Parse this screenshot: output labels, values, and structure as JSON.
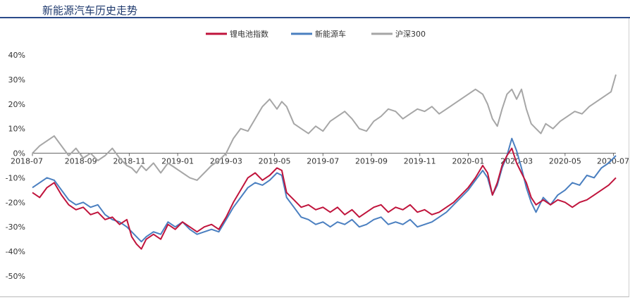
{
  "header": {
    "title": "新能源汽车历史走势"
  },
  "chart_data": {
    "type": "line",
    "title": "新能源汽车历史走势",
    "ylim": [
      -50,
      40
    ],
    "yticks": [
      "40%",
      "30%",
      "20%",
      "10%",
      "0%",
      "-10%",
      "-20%",
      "-30%",
      "-40%",
      "-50%"
    ],
    "ytick_values": [
      40,
      30,
      20,
      10,
      0,
      -10,
      -20,
      -30,
      -40,
      -50
    ],
    "x_ticks": [
      "2018-07",
      "2018-09",
      "2018-11",
      "2019-01",
      "2019-03",
      "2019-05",
      "2019-07",
      "2019-09",
      "2019-11",
      "2020-01",
      "2020-03",
      "2020-05",
      "2020-07"
    ],
    "x_tick_months": [
      0,
      2,
      4,
      6,
      8,
      10,
      12,
      14,
      16,
      18,
      20,
      22,
      24
    ],
    "xlim_months": [
      0,
      24.1
    ],
    "legend_position": "top-center",
    "grid": false,
    "series": [
      {
        "name": "锂电池指数",
        "color": "#c0143c",
        "points": [
          [
            0,
            -16
          ],
          [
            0.3,
            -18
          ],
          [
            0.6,
            -14
          ],
          [
            0.9,
            -12
          ],
          [
            1.2,
            -17
          ],
          [
            1.5,
            -21
          ],
          [
            1.8,
            -23
          ],
          [
            2.1,
            -22
          ],
          [
            2.4,
            -25
          ],
          [
            2.7,
            -24
          ],
          [
            3.0,
            -27
          ],
          [
            3.3,
            -26
          ],
          [
            3.6,
            -29
          ],
          [
            3.9,
            -27
          ],
          [
            4.1,
            -34
          ],
          [
            4.3,
            -37
          ],
          [
            4.5,
            -39
          ],
          [
            4.7,
            -35
          ],
          [
            5.0,
            -33
          ],
          [
            5.3,
            -35
          ],
          [
            5.6,
            -29
          ],
          [
            5.9,
            -31
          ],
          [
            6.2,
            -28
          ],
          [
            6.5,
            -30
          ],
          [
            6.8,
            -32
          ],
          [
            7.1,
            -30
          ],
          [
            7.4,
            -29
          ],
          [
            7.7,
            -31
          ],
          [
            8.0,
            -26
          ],
          [
            8.3,
            -20
          ],
          [
            8.6,
            -15
          ],
          [
            8.9,
            -10
          ],
          [
            9.2,
            -8
          ],
          [
            9.5,
            -11
          ],
          [
            9.8,
            -9
          ],
          [
            10.1,
            -6
          ],
          [
            10.3,
            -7
          ],
          [
            10.5,
            -16
          ],
          [
            10.8,
            -19
          ],
          [
            11.1,
            -22
          ],
          [
            11.4,
            -21
          ],
          [
            11.7,
            -23
          ],
          [
            12.0,
            -22
          ],
          [
            12.3,
            -24
          ],
          [
            12.6,
            -22
          ],
          [
            12.9,
            -25
          ],
          [
            13.2,
            -23
          ],
          [
            13.5,
            -26
          ],
          [
            13.8,
            -24
          ],
          [
            14.1,
            -22
          ],
          [
            14.4,
            -21
          ],
          [
            14.7,
            -24
          ],
          [
            15.0,
            -22
          ],
          [
            15.3,
            -23
          ],
          [
            15.6,
            -21
          ],
          [
            15.9,
            -24
          ],
          [
            16.2,
            -23
          ],
          [
            16.5,
            -25
          ],
          [
            16.8,
            -24
          ],
          [
            17.1,
            -22
          ],
          [
            17.4,
            -20
          ],
          [
            17.7,
            -17
          ],
          [
            18.0,
            -14
          ],
          [
            18.3,
            -10
          ],
          [
            18.6,
            -5
          ],
          [
            18.8,
            -8
          ],
          [
            19.0,
            -17
          ],
          [
            19.2,
            -12
          ],
          [
            19.4,
            -5
          ],
          [
            19.6,
            -1
          ],
          [
            19.8,
            2
          ],
          [
            20.0,
            -4
          ],
          [
            20.2,
            -8
          ],
          [
            20.4,
            -12
          ],
          [
            20.6,
            -18
          ],
          [
            20.8,
            -21
          ],
          [
            21.1,
            -19
          ],
          [
            21.4,
            -21
          ],
          [
            21.7,
            -19
          ],
          [
            22.0,
            -20
          ],
          [
            22.3,
            -22
          ],
          [
            22.6,
            -20
          ],
          [
            22.9,
            -19
          ],
          [
            23.2,
            -17
          ],
          [
            23.5,
            -15
          ],
          [
            23.8,
            -13
          ],
          [
            24.0,
            -11
          ],
          [
            24.1,
            -10
          ]
        ]
      },
      {
        "name": "新能源车",
        "color": "#4a7fc0",
        "points": [
          [
            0,
            -14
          ],
          [
            0.3,
            -12
          ],
          [
            0.6,
            -10
          ],
          [
            0.9,
            -11
          ],
          [
            1.2,
            -15
          ],
          [
            1.5,
            -19
          ],
          [
            1.8,
            -21
          ],
          [
            2.1,
            -20
          ],
          [
            2.4,
            -22
          ],
          [
            2.7,
            -21
          ],
          [
            3.0,
            -25
          ],
          [
            3.3,
            -27
          ],
          [
            3.6,
            -28
          ],
          [
            3.9,
            -30
          ],
          [
            4.1,
            -32
          ],
          [
            4.3,
            -34
          ],
          [
            4.5,
            -36
          ],
          [
            4.7,
            -34
          ],
          [
            5.0,
            -32
          ],
          [
            5.3,
            -33
          ],
          [
            5.6,
            -28
          ],
          [
            5.9,
            -30
          ],
          [
            6.2,
            -28
          ],
          [
            6.5,
            -31
          ],
          [
            6.8,
            -33
          ],
          [
            7.1,
            -32
          ],
          [
            7.4,
            -31
          ],
          [
            7.7,
            -32
          ],
          [
            8.0,
            -27
          ],
          [
            8.3,
            -22
          ],
          [
            8.6,
            -18
          ],
          [
            8.9,
            -14
          ],
          [
            9.2,
            -12
          ],
          [
            9.5,
            -13
          ],
          [
            9.8,
            -11
          ],
          [
            10.1,
            -8
          ],
          [
            10.3,
            -9
          ],
          [
            10.5,
            -18
          ],
          [
            10.8,
            -22
          ],
          [
            11.1,
            -26
          ],
          [
            11.4,
            -27
          ],
          [
            11.7,
            -29
          ],
          [
            12.0,
            -28
          ],
          [
            12.3,
            -30
          ],
          [
            12.6,
            -28
          ],
          [
            12.9,
            -29
          ],
          [
            13.2,
            -27
          ],
          [
            13.5,
            -30
          ],
          [
            13.8,
            -29
          ],
          [
            14.1,
            -27
          ],
          [
            14.4,
            -26
          ],
          [
            14.7,
            -29
          ],
          [
            15.0,
            -28
          ],
          [
            15.3,
            -29
          ],
          [
            15.6,
            -27
          ],
          [
            15.9,
            -30
          ],
          [
            16.2,
            -29
          ],
          [
            16.5,
            -28
          ],
          [
            16.8,
            -26
          ],
          [
            17.1,
            -24
          ],
          [
            17.4,
            -21
          ],
          [
            17.7,
            -18
          ],
          [
            18.0,
            -15
          ],
          [
            18.3,
            -11
          ],
          [
            18.6,
            -7
          ],
          [
            18.8,
            -10
          ],
          [
            19.0,
            -17
          ],
          [
            19.2,
            -13
          ],
          [
            19.4,
            -6
          ],
          [
            19.6,
            -1
          ],
          [
            19.8,
            6
          ],
          [
            20.0,
            1
          ],
          [
            20.2,
            -6
          ],
          [
            20.4,
            -14
          ],
          [
            20.6,
            -20
          ],
          [
            20.8,
            -24
          ],
          [
            21.1,
            -18
          ],
          [
            21.4,
            -21
          ],
          [
            21.7,
            -17
          ],
          [
            22.0,
            -15
          ],
          [
            22.3,
            -12
          ],
          [
            22.6,
            -13
          ],
          [
            22.9,
            -9
          ],
          [
            23.2,
            -10
          ],
          [
            23.5,
            -6
          ],
          [
            23.8,
            -4
          ],
          [
            24.0,
            -2
          ],
          [
            24.1,
            -1
          ]
        ]
      },
      {
        "name": "沪深300",
        "color": "#a6a6a6",
        "points": [
          [
            0,
            0
          ],
          [
            0.3,
            3
          ],
          [
            0.6,
            5
          ],
          [
            0.9,
            7
          ],
          [
            1.2,
            3
          ],
          [
            1.5,
            -1
          ],
          [
            1.8,
            2
          ],
          [
            2.1,
            -2
          ],
          [
            2.4,
            0
          ],
          [
            2.7,
            -3
          ],
          [
            3.0,
            -1
          ],
          [
            3.3,
            2
          ],
          [
            3.6,
            -2
          ],
          [
            3.9,
            -5
          ],
          [
            4.1,
            -6
          ],
          [
            4.3,
            -8
          ],
          [
            4.5,
            -5
          ],
          [
            4.7,
            -7
          ],
          [
            5.0,
            -4
          ],
          [
            5.3,
            -8
          ],
          [
            5.6,
            -4
          ],
          [
            5.9,
            -6
          ],
          [
            6.2,
            -8
          ],
          [
            6.5,
            -10
          ],
          [
            6.8,
            -11
          ],
          [
            7.1,
            -8
          ],
          [
            7.4,
            -5
          ],
          [
            7.7,
            -3
          ],
          [
            8.0,
            0
          ],
          [
            8.3,
            6
          ],
          [
            8.6,
            10
          ],
          [
            8.9,
            9
          ],
          [
            9.2,
            14
          ],
          [
            9.5,
            19
          ],
          [
            9.8,
            22
          ],
          [
            10.1,
            18
          ],
          [
            10.3,
            21
          ],
          [
            10.5,
            19
          ],
          [
            10.8,
            12
          ],
          [
            11.1,
            10
          ],
          [
            11.4,
            8
          ],
          [
            11.7,
            11
          ],
          [
            12.0,
            9
          ],
          [
            12.3,
            13
          ],
          [
            12.6,
            15
          ],
          [
            12.9,
            17
          ],
          [
            13.2,
            14
          ],
          [
            13.5,
            10
          ],
          [
            13.8,
            9
          ],
          [
            14.1,
            13
          ],
          [
            14.4,
            15
          ],
          [
            14.7,
            18
          ],
          [
            15.0,
            17
          ],
          [
            15.3,
            14
          ],
          [
            15.6,
            16
          ],
          [
            15.9,
            18
          ],
          [
            16.2,
            17
          ],
          [
            16.5,
            19
          ],
          [
            16.8,
            16
          ],
          [
            17.1,
            18
          ],
          [
            17.4,
            20
          ],
          [
            17.7,
            22
          ],
          [
            18.0,
            24
          ],
          [
            18.3,
            26
          ],
          [
            18.6,
            24
          ],
          [
            18.8,
            20
          ],
          [
            19.0,
            14
          ],
          [
            19.2,
            11
          ],
          [
            19.4,
            18
          ],
          [
            19.6,
            24
          ],
          [
            19.8,
            26
          ],
          [
            20.0,
            22
          ],
          [
            20.2,
            26
          ],
          [
            20.4,
            18
          ],
          [
            20.6,
            12
          ],
          [
            20.8,
            10
          ],
          [
            21.0,
            8
          ],
          [
            21.2,
            12
          ],
          [
            21.5,
            10
          ],
          [
            21.8,
            13
          ],
          [
            22.1,
            15
          ],
          [
            22.4,
            17
          ],
          [
            22.7,
            16
          ],
          [
            23.0,
            19
          ],
          [
            23.3,
            21
          ],
          [
            23.6,
            23
          ],
          [
            23.9,
            25
          ],
          [
            24.1,
            32
          ]
        ]
      }
    ]
  }
}
